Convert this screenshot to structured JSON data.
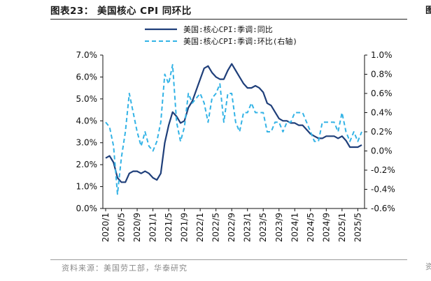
{
  "figure_title": "图表23：  美国核心 CPI 同环比",
  "source": "资料来源：美国劳工部，华泰研究",
  "right_stub_title": "图",
  "right_stub_source": "资",
  "colors": {
    "yoy": "#1f3f7a",
    "mom": "#33b3e6",
    "axis": "#111111"
  },
  "chart_data": {
    "type": "line",
    "title": "美国核心 CPI 同环比",
    "xlabel": "",
    "ylabel_left": "",
    "ylabel_right": "",
    "ylim_left": [
      0,
      7
    ],
    "ylim_right": [
      -0.6,
      1.0
    ],
    "left_ticks": [
      "0.0%",
      "1.0%",
      "2.0%",
      "3.0%",
      "4.0%",
      "5.0%",
      "6.0%",
      "7.0%"
    ],
    "right_ticks": [
      "-0.6%",
      "-0.4%",
      "-0.2%",
      "0.0%",
      "0.2%",
      "0.4%",
      "0.6%",
      "0.8%",
      "1.0%"
    ],
    "x_tick_labels": [
      "2020/1",
      "2020/5",
      "2020/9",
      "2021/1",
      "2021/5",
      "2021/9",
      "2022/1",
      "2022/5",
      "2022/9",
      "2023/1",
      "2023/5",
      "2023/9",
      "2024/1",
      "2024/5",
      "2024/9",
      "2025/1",
      "2025/5"
    ],
    "x": [
      "2020/1",
      "2020/2",
      "2020/3",
      "2020/4",
      "2020/5",
      "2020/6",
      "2020/7",
      "2020/8",
      "2020/9",
      "2020/10",
      "2020/11",
      "2020/12",
      "2021/1",
      "2021/2",
      "2021/3",
      "2021/4",
      "2021/5",
      "2021/6",
      "2021/7",
      "2021/8",
      "2021/9",
      "2021/10",
      "2021/11",
      "2021/12",
      "2022/1",
      "2022/2",
      "2022/3",
      "2022/4",
      "2022/5",
      "2022/6",
      "2022/7",
      "2022/8",
      "2022/9",
      "2022/10",
      "2022/11",
      "2022/12",
      "2023/1",
      "2023/2",
      "2023/3",
      "2023/4",
      "2023/5",
      "2023/6",
      "2023/7",
      "2023/8",
      "2023/9",
      "2023/10",
      "2023/11",
      "2023/12",
      "2024/1",
      "2024/2",
      "2024/3",
      "2024/4",
      "2024/5",
      "2024/6",
      "2024/7",
      "2024/8",
      "2024/9",
      "2024/10",
      "2024/11",
      "2024/12",
      "2025/1",
      "2025/2",
      "2025/3",
      "2025/4",
      "2025/5",
      "2025/6"
    ],
    "legend_position": "top-center",
    "series": [
      {
        "name": "美国:核心CPI:季调:同比",
        "axis": "left",
        "style": "solid",
        "values": [
          2.3,
          2.4,
          2.1,
          1.4,
          1.2,
          1.2,
          1.6,
          1.7,
          1.7,
          1.6,
          1.7,
          1.6,
          1.4,
          1.3,
          1.6,
          3.0,
          3.8,
          4.4,
          4.2,
          3.9,
          4.0,
          4.6,
          4.9,
          5.4,
          5.9,
          6.4,
          6.5,
          6.2,
          6.0,
          5.9,
          5.9,
          6.3,
          6.6,
          6.3,
          6.0,
          5.7,
          5.5,
          5.5,
          5.6,
          5.5,
          5.3,
          4.8,
          4.7,
          4.4,
          4.1,
          4.0,
          4.0,
          3.9,
          3.9,
          3.8,
          3.8,
          3.6,
          3.4,
          3.3,
          3.2,
          3.2,
          3.3,
          3.3,
          3.3,
          3.2,
          3.3,
          3.1,
          2.8,
          2.8,
          2.8,
          2.9
        ]
      },
      {
        "name": "美国:核心CPI:季调:环比(右轴)",
        "axis": "right",
        "style": "dashed",
        "values": [
          0.3,
          0.25,
          0.05,
          -0.45,
          -0.07,
          0.2,
          0.6,
          0.4,
          0.2,
          0.05,
          0.2,
          0.05,
          0.0,
          0.1,
          0.3,
          0.8,
          0.7,
          0.9,
          0.3,
          0.1,
          0.25,
          0.6,
          0.5,
          0.55,
          0.6,
          0.5,
          0.3,
          0.55,
          0.6,
          0.7,
          0.3,
          0.6,
          0.6,
          0.3,
          0.2,
          0.4,
          0.4,
          0.5,
          0.4,
          0.4,
          0.4,
          0.2,
          0.2,
          0.3,
          0.3,
          0.2,
          0.3,
          0.3,
          0.4,
          0.4,
          0.4,
          0.3,
          0.2,
          0.1,
          0.1,
          0.3,
          0.3,
          0.3,
          0.3,
          0.2,
          0.4,
          0.2,
          0.1,
          0.2,
          0.1,
          0.2
        ]
      }
    ]
  }
}
